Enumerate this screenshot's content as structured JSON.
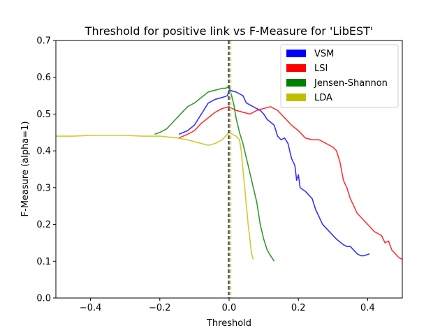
{
  "chart_data": {
    "type": "line",
    "title": "Threshold for positive link vs F-Measure for 'LibEST'",
    "xlabel": "Threshold",
    "ylabel": "F-Measure (alpha=1)",
    "xlim": [
      -0.5,
      0.5
    ],
    "ylim": [
      0,
      0.7
    ],
    "xticks": [
      -0.4,
      -0.2,
      0.0,
      0.2,
      0.4
    ],
    "xtick_labels": [
      "−0.4",
      "−0.2",
      "0.0",
      "0.2",
      "0.4"
    ],
    "yticks": [
      0.0,
      0.1,
      0.2,
      0.3,
      0.4,
      0.5,
      0.6,
      0.7
    ],
    "ytick_labels": [
      "0.0",
      "0.1",
      "0.2",
      "0.3",
      "0.4",
      "0.5",
      "0.6",
      "0.7"
    ],
    "grid": false,
    "legend_position": "top-right",
    "vlines": [
      {
        "x": -0.002,
        "color": "#1f3f7a"
      },
      {
        "x": 0.0,
        "color": "#8b1a1a"
      },
      {
        "x": -0.001,
        "color": "#2e6b2e"
      },
      {
        "x": 0.005,
        "color": "#c8b46a"
      }
    ],
    "series": [
      {
        "name": "VSM",
        "color": "#0000ff",
        "x": [
          -0.145,
          -0.12,
          -0.1,
          -0.08,
          -0.06,
          -0.04,
          -0.02,
          -0.005,
          0.0,
          0.02,
          0.04,
          0.05,
          0.07,
          0.09,
          0.1,
          0.11,
          0.13,
          0.14,
          0.15,
          0.16,
          0.17,
          0.18,
          0.19,
          0.195,
          0.2,
          0.205,
          0.22,
          0.24,
          0.25,
          0.26,
          0.27,
          0.29,
          0.3,
          0.31,
          0.33,
          0.34,
          0.35,
          0.37,
          0.38,
          0.39,
          0.405
        ],
        "y": [
          0.445,
          0.455,
          0.47,
          0.5,
          0.53,
          0.54,
          0.545,
          0.55,
          0.565,
          0.56,
          0.55,
          0.53,
          0.52,
          0.51,
          0.5,
          0.485,
          0.47,
          0.44,
          0.43,
          0.435,
          0.42,
          0.38,
          0.36,
          0.32,
          0.335,
          0.3,
          0.29,
          0.27,
          0.24,
          0.22,
          0.2,
          0.18,
          0.17,
          0.16,
          0.145,
          0.14,
          0.14,
          0.12,
          0.115,
          0.115,
          0.12
        ]
      },
      {
        "name": "LSI",
        "color": "#ff0000",
        "x": [
          -0.145,
          -0.12,
          -0.1,
          -0.08,
          -0.06,
          -0.04,
          -0.02,
          0.0,
          0.02,
          0.04,
          0.06,
          0.08,
          0.1,
          0.12,
          0.14,
          0.16,
          0.18,
          0.2,
          0.22,
          0.24,
          0.26,
          0.28,
          0.3,
          0.31,
          0.32,
          0.33,
          0.34,
          0.35,
          0.36,
          0.37,
          0.38,
          0.4,
          0.42,
          0.44,
          0.45,
          0.46,
          0.47,
          0.48,
          0.49,
          0.5
        ],
        "y": [
          0.435,
          0.445,
          0.455,
          0.475,
          0.49,
          0.505,
          0.515,
          0.52,
          0.51,
          0.505,
          0.5,
          0.51,
          0.515,
          0.52,
          0.51,
          0.49,
          0.47,
          0.455,
          0.435,
          0.43,
          0.43,
          0.42,
          0.41,
          0.4,
          0.37,
          0.32,
          0.3,
          0.27,
          0.25,
          0.23,
          0.22,
          0.2,
          0.18,
          0.17,
          0.15,
          0.155,
          0.13,
          0.12,
          0.11,
          0.105
        ]
      },
      {
        "name": "Jensen-Shannon",
        "color": "#008000",
        "x": [
          -0.215,
          -0.2,
          -0.18,
          -0.16,
          -0.14,
          -0.12,
          -0.1,
          -0.08,
          -0.06,
          -0.04,
          -0.02,
          -0.01,
          0.0,
          0.01,
          0.015,
          0.02,
          0.025,
          0.03,
          0.04,
          0.05,
          0.06,
          0.07,
          0.08,
          0.09,
          0.1,
          0.11,
          0.12,
          0.13
        ],
        "y": [
          0.445,
          0.45,
          0.46,
          0.48,
          0.5,
          0.52,
          0.53,
          0.545,
          0.56,
          0.565,
          0.57,
          0.57,
          0.575,
          0.54,
          0.52,
          0.49,
          0.47,
          0.45,
          0.42,
          0.38,
          0.34,
          0.3,
          0.26,
          0.2,
          0.16,
          0.13,
          0.115,
          0.1
        ]
      },
      {
        "name": "LDA",
        "color": "#bfbf00",
        "x": [
          -0.5,
          -0.45,
          -0.4,
          -0.35,
          -0.3,
          -0.25,
          -0.2,
          -0.15,
          -0.12,
          -0.1,
          -0.08,
          -0.06,
          -0.04,
          -0.02,
          0.0,
          0.01,
          0.02,
          0.03,
          0.035,
          0.04,
          0.045,
          0.05,
          0.055,
          0.06,
          0.065,
          0.07
        ],
        "y": [
          0.44,
          0.44,
          0.442,
          0.442,
          0.442,
          0.44,
          0.44,
          0.435,
          0.43,
          0.425,
          0.42,
          0.415,
          0.42,
          0.43,
          0.45,
          0.445,
          0.44,
          0.43,
          0.4,
          0.35,
          0.3,
          0.25,
          0.2,
          0.16,
          0.12,
          0.105
        ]
      }
    ]
  }
}
